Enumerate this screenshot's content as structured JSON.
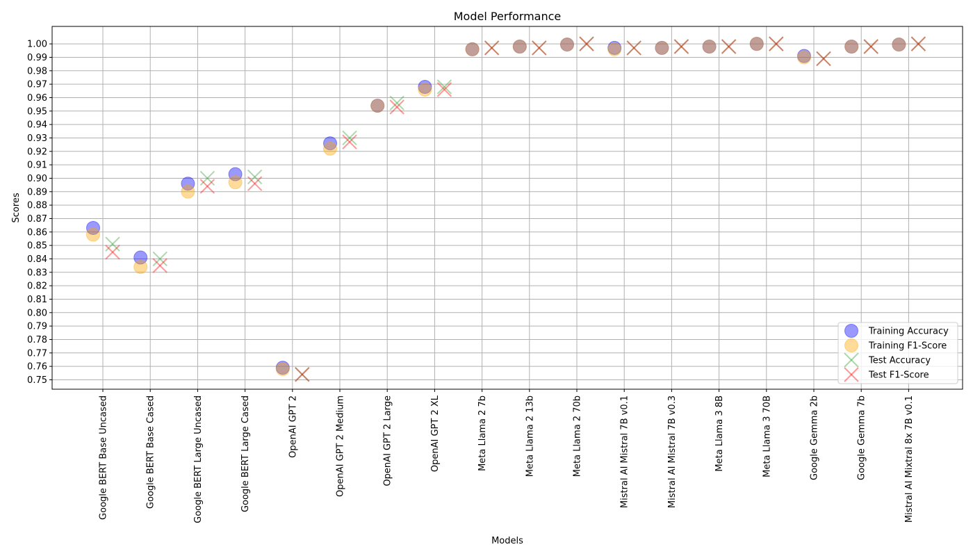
{
  "chart_data": {
    "type": "scatter",
    "title": "Model Performance",
    "xlabel": "Models",
    "ylabel": "Scores",
    "ylim": [
      0.743,
      1.013
    ],
    "yticks": [
      0.75,
      0.76,
      0.77,
      0.78,
      0.79,
      0.8,
      0.81,
      0.82,
      0.83,
      0.84,
      0.85,
      0.86,
      0.87,
      0.88,
      0.89,
      0.9,
      0.91,
      0.92,
      0.93,
      0.94,
      0.95,
      0.96,
      0.97,
      0.98,
      0.99,
      1.0
    ],
    "grid": true,
    "legend_position": "lower-right",
    "categories": [
      "Google BERT Base Uncased",
      "Google BERT Base Cased",
      "Google BERT Large Uncased",
      "Google BERT Large Cased",
      "OpenAI GPT 2",
      "OpenAI GPT 2 Medium",
      "OpenAI GPT 2 Large",
      "OpenAI GPT 2 XL",
      "Meta Llama 2 7b",
      "Meta Llama 2 13b",
      "Meta Llama 2 70b",
      "Mistral AI Mistral 7B v0.1",
      "Mistral AI Mistral 7B v0.3",
      "Meta Llama 3 8B",
      "Meta Llama 3 70B",
      "Google Gemma 2b",
      "Google Gemma 7b",
      "Mistral AI Mixtral 8x 7B v0.1"
    ],
    "series": [
      {
        "name": "Training Accuracy",
        "marker": "circle",
        "color": "#0000ff",
        "values": [
          0.863,
          0.841,
          0.896,
          0.903,
          0.759,
          0.926,
          0.954,
          0.968,
          0.996,
          0.998,
          0.9995,
          0.997,
          0.997,
          0.998,
          1.0,
          0.991,
          0.998,
          0.9995
        ]
      },
      {
        "name": "Training F1-Score",
        "marker": "circle",
        "color": "#ffa500",
        "values": [
          0.858,
          0.834,
          0.89,
          0.897,
          0.758,
          0.922,
          0.954,
          0.966,
          0.996,
          0.998,
          0.9995,
          0.996,
          0.997,
          0.998,
          1.0,
          0.99,
          0.998,
          0.9995
        ]
      },
      {
        "name": "Test Accuracy",
        "marker": "x",
        "color": "#2ca02c",
        "values": [
          0.851,
          0.84,
          0.9,
          0.901,
          0.754,
          0.93,
          0.956,
          0.968,
          0.997,
          0.997,
          1.0,
          0.997,
          0.998,
          0.998,
          1.0,
          0.989,
          0.998,
          1.0
        ]
      },
      {
        "name": "Test F1-Score",
        "marker": "x",
        "color": "#ff0000",
        "values": [
          0.845,
          0.835,
          0.894,
          0.896,
          0.754,
          0.927,
          0.953,
          0.966,
          0.997,
          0.997,
          1.0,
          0.997,
          0.998,
          0.998,
          1.0,
          0.989,
          0.998,
          1.0
        ]
      }
    ]
  }
}
